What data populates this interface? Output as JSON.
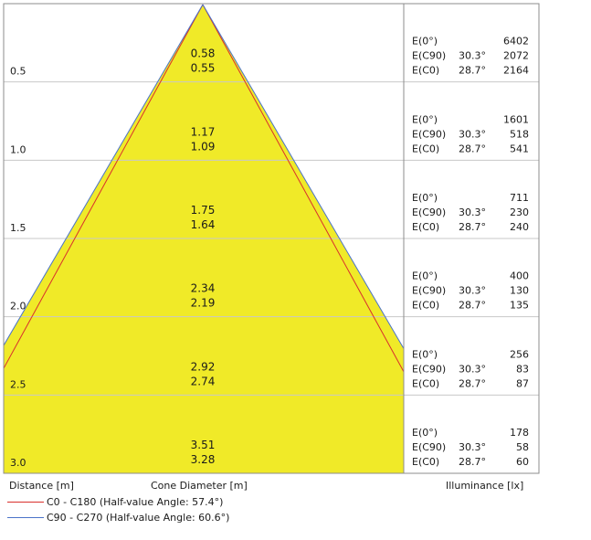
{
  "chart_data": {
    "type": "cone-diagram",
    "xlabel": "Cone Diameter [m]",
    "ylabel": "Distance [m]",
    "value_label": "Illuminance [lx]",
    "half_value_angles": [
      {
        "name": "C0 - C180 (Half-value Angle: 57.4°)",
        "angle": 57.4,
        "color": "#d9302c"
      },
      {
        "name": "C90 - C270 (Half-value Angle: 60.6°)",
        "angle": 60.6,
        "color": "#4a73c9"
      }
    ],
    "rows": [
      {
        "distance": "0.5",
        "diameter_c90": "0.58",
        "diameter_c0": "0.55",
        "e0_label": "E(0°)",
        "e0": "6402",
        "ec90_label": "E(C90)",
        "ec90_angle": "30.3°",
        "ec90": "2072",
        "ec0_label": "E(C0)",
        "ec0_angle": "28.7°",
        "ec0": "2164"
      },
      {
        "distance": "1.0",
        "diameter_c90": "1.17",
        "diameter_c0": "1.09",
        "e0_label": "E(0°)",
        "e0": "1601",
        "ec90_label": "E(C90)",
        "ec90_angle": "30.3°",
        "ec90": "518",
        "ec0_label": "E(C0)",
        "ec0_angle": "28.7°",
        "ec0": "541"
      },
      {
        "distance": "1.5",
        "diameter_c90": "1.75",
        "diameter_c0": "1.64",
        "e0_label": "E(0°)",
        "e0": "711",
        "ec90_label": "E(C90)",
        "ec90_angle": "30.3°",
        "ec90": "230",
        "ec0_label": "E(C0)",
        "ec0_angle": "28.7°",
        "ec0": "240"
      },
      {
        "distance": "2.0",
        "diameter_c90": "2.34",
        "diameter_c0": "2.19",
        "e0_label": "E(0°)",
        "e0": "400",
        "ec90_label": "E(C90)",
        "ec90_angle": "30.3°",
        "ec90": "130",
        "ec0_label": "E(C0)",
        "ec0_angle": "28.7°",
        "ec0": "135"
      },
      {
        "distance": "2.5",
        "diameter_c90": "2.92",
        "diameter_c0": "2.74",
        "e0_label": "E(0°)",
        "e0": "256",
        "ec90_label": "E(C90)",
        "ec90_angle": "30.3°",
        "ec90": "83",
        "ec0_label": "E(C0)",
        "ec0_angle": "28.7°",
        "ec0": "87"
      },
      {
        "distance": "3.0",
        "diameter_c90": "3.51",
        "diameter_c0": "3.28",
        "e0_label": "E(0°)",
        "e0": "178",
        "ec90_label": "E(C90)",
        "ec90_angle": "30.3°",
        "ec90": "58",
        "ec0_label": "E(C0)",
        "ec0_angle": "28.7°",
        "ec0": "60"
      }
    ],
    "grid": true,
    "cone_fill_color": "#f0ea28",
    "grid_color": "#c8c8c8",
    "border_color": "#8c8c8c"
  }
}
